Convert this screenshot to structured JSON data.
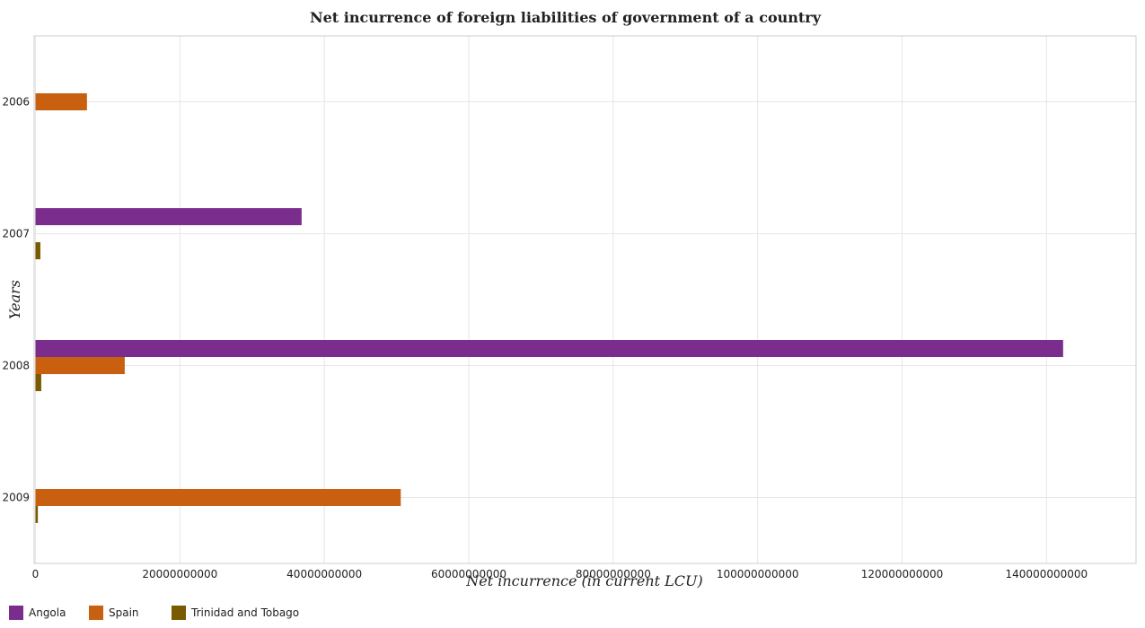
{
  "chart_data": {
    "type": "bar",
    "orientation": "horizontal",
    "title": "Net incurrence of foreign liabilities of government of a country",
    "xlabel": "Net incurrence (in current LCU)",
    "ylabel": "Years",
    "categories": [
      "2006",
      "2007",
      "2008",
      "2009"
    ],
    "series": [
      {
        "name": "Angola",
        "color": "#7b2d8e",
        "values": [
          0,
          36850000000,
          142300000000,
          0
        ]
      },
      {
        "name": "Spain",
        "color": "#c8600f",
        "values": [
          7130000000,
          0,
          12360000000,
          50580000000
        ]
      },
      {
        "name": "Trinidad and Tobago",
        "color": "#7a5a00",
        "values": [
          0,
          680000000,
          800000000,
          330000000
        ]
      }
    ],
    "xlim": [
      0,
      150000000000
    ],
    "xticks": [
      0,
      20000000000,
      40000000000,
      60000000000,
      80000000000,
      100000000000,
      120000000000,
      140000000000
    ],
    "xtick_labels": [
      "0",
      "20000000000",
      "40000000000",
      "60000000000",
      "80000000000",
      "100000000000",
      "120000000000",
      "140000000000"
    ],
    "grid": true,
    "legend_position": "bottom-left"
  }
}
